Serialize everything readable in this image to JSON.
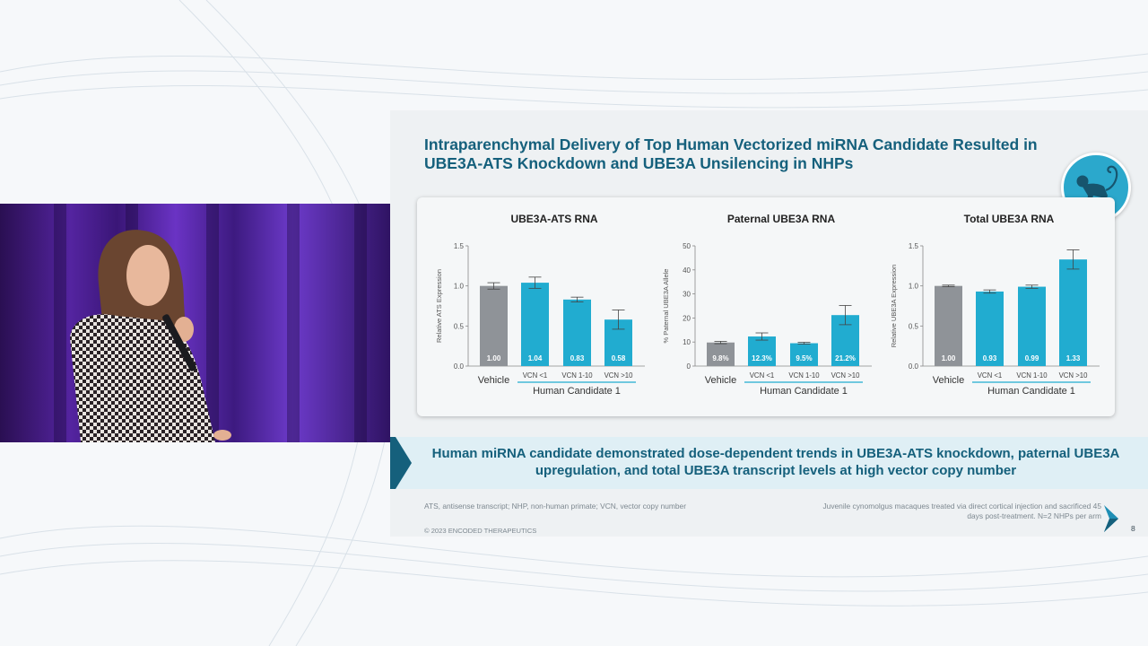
{
  "slide": {
    "title": "Intraparenchymal Delivery of Top Human Vectorized miRNA Candidate Resulted in UBE3A-ATS Knockdown and UBE3A Unsilencing in NHPs",
    "conclusion": "Human miRNA candidate demonstrated dose-dependent trends in UBE3A-ATS knockdown, paternal UBE3A upregulation, and total UBE3A transcript levels at high vector copy number",
    "footnote_left": "ATS, antisense transcript; NHP, non-human primate; VCN, vector copy number",
    "footnote_right": "Juvenile cynomolgus macaques treated via direct cortical injection and sacrificed 45 days post-treatment. N=2 NHPs per arm",
    "copyright": "© 2023 ENCODED THERAPEUTICS",
    "page_number": "8"
  },
  "icons": [
    "monkey-icon",
    "company-logo-icon"
  ],
  "colors": {
    "title": "#15607c",
    "vehicle_bar": "#8f9398",
    "candidate_bar": "#21acd0",
    "badge": "#2ba8cc"
  },
  "chart_data": [
    {
      "type": "bar",
      "title": "UBE3A-ATS RNA",
      "ylabel": "Relative ATS Expression",
      "group_label": "Human Candidate 1",
      "categories": [
        "Vehicle",
        "VCN <1",
        "VCN 1-10",
        "VCN >10"
      ],
      "values": [
        1.0,
        1.04,
        0.83,
        0.58
      ],
      "errors": [
        0.04,
        0.07,
        0.03,
        0.12
      ],
      "value_labels": [
        "1.00",
        "1.04",
        "0.83",
        "0.58"
      ],
      "ylim": [
        0,
        1.5
      ],
      "ticks": [
        0,
        0.5,
        1.0,
        1.5
      ],
      "tick_labels": [
        "0.0",
        "0.5",
        "1.0",
        "1.5"
      ]
    },
    {
      "type": "bar",
      "title": "Paternal UBE3A RNA",
      "ylabel": "% Paternal UBE3A Allele",
      "group_label": "Human Candidate 1",
      "categories": [
        "Vehicle",
        "VCN <1",
        "VCN 1-10",
        "VCN >10"
      ],
      "values": [
        9.8,
        12.3,
        9.5,
        21.2
      ],
      "errors": [
        0.5,
        1.5,
        0.4,
        4.0
      ],
      "value_labels": [
        "9.8%",
        "12.3%",
        "9.5%",
        "21.2%"
      ],
      "ylim": [
        0,
        50
      ],
      "ticks": [
        0,
        10,
        20,
        30,
        40,
        50
      ],
      "tick_labels": [
        "0",
        "10",
        "20",
        "30",
        "40",
        "50"
      ]
    },
    {
      "type": "bar",
      "title": "Total UBE3A RNA",
      "ylabel": "Relative UBE3A Expression",
      "group_label": "Human Candidate 1",
      "categories": [
        "Vehicle",
        "VCN <1",
        "VCN 1-10",
        "VCN >10"
      ],
      "values": [
        1.0,
        0.93,
        0.99,
        1.33
      ],
      "errors": [
        0.01,
        0.02,
        0.02,
        0.12
      ],
      "value_labels": [
        "1.00",
        "0.93",
        "0.99",
        "1.33"
      ],
      "ylim": [
        0,
        1.5
      ],
      "ticks": [
        0,
        0.5,
        1.0,
        1.5
      ],
      "tick_labels": [
        "0.0",
        "0.5",
        "1.0",
        "1.5"
      ]
    }
  ]
}
